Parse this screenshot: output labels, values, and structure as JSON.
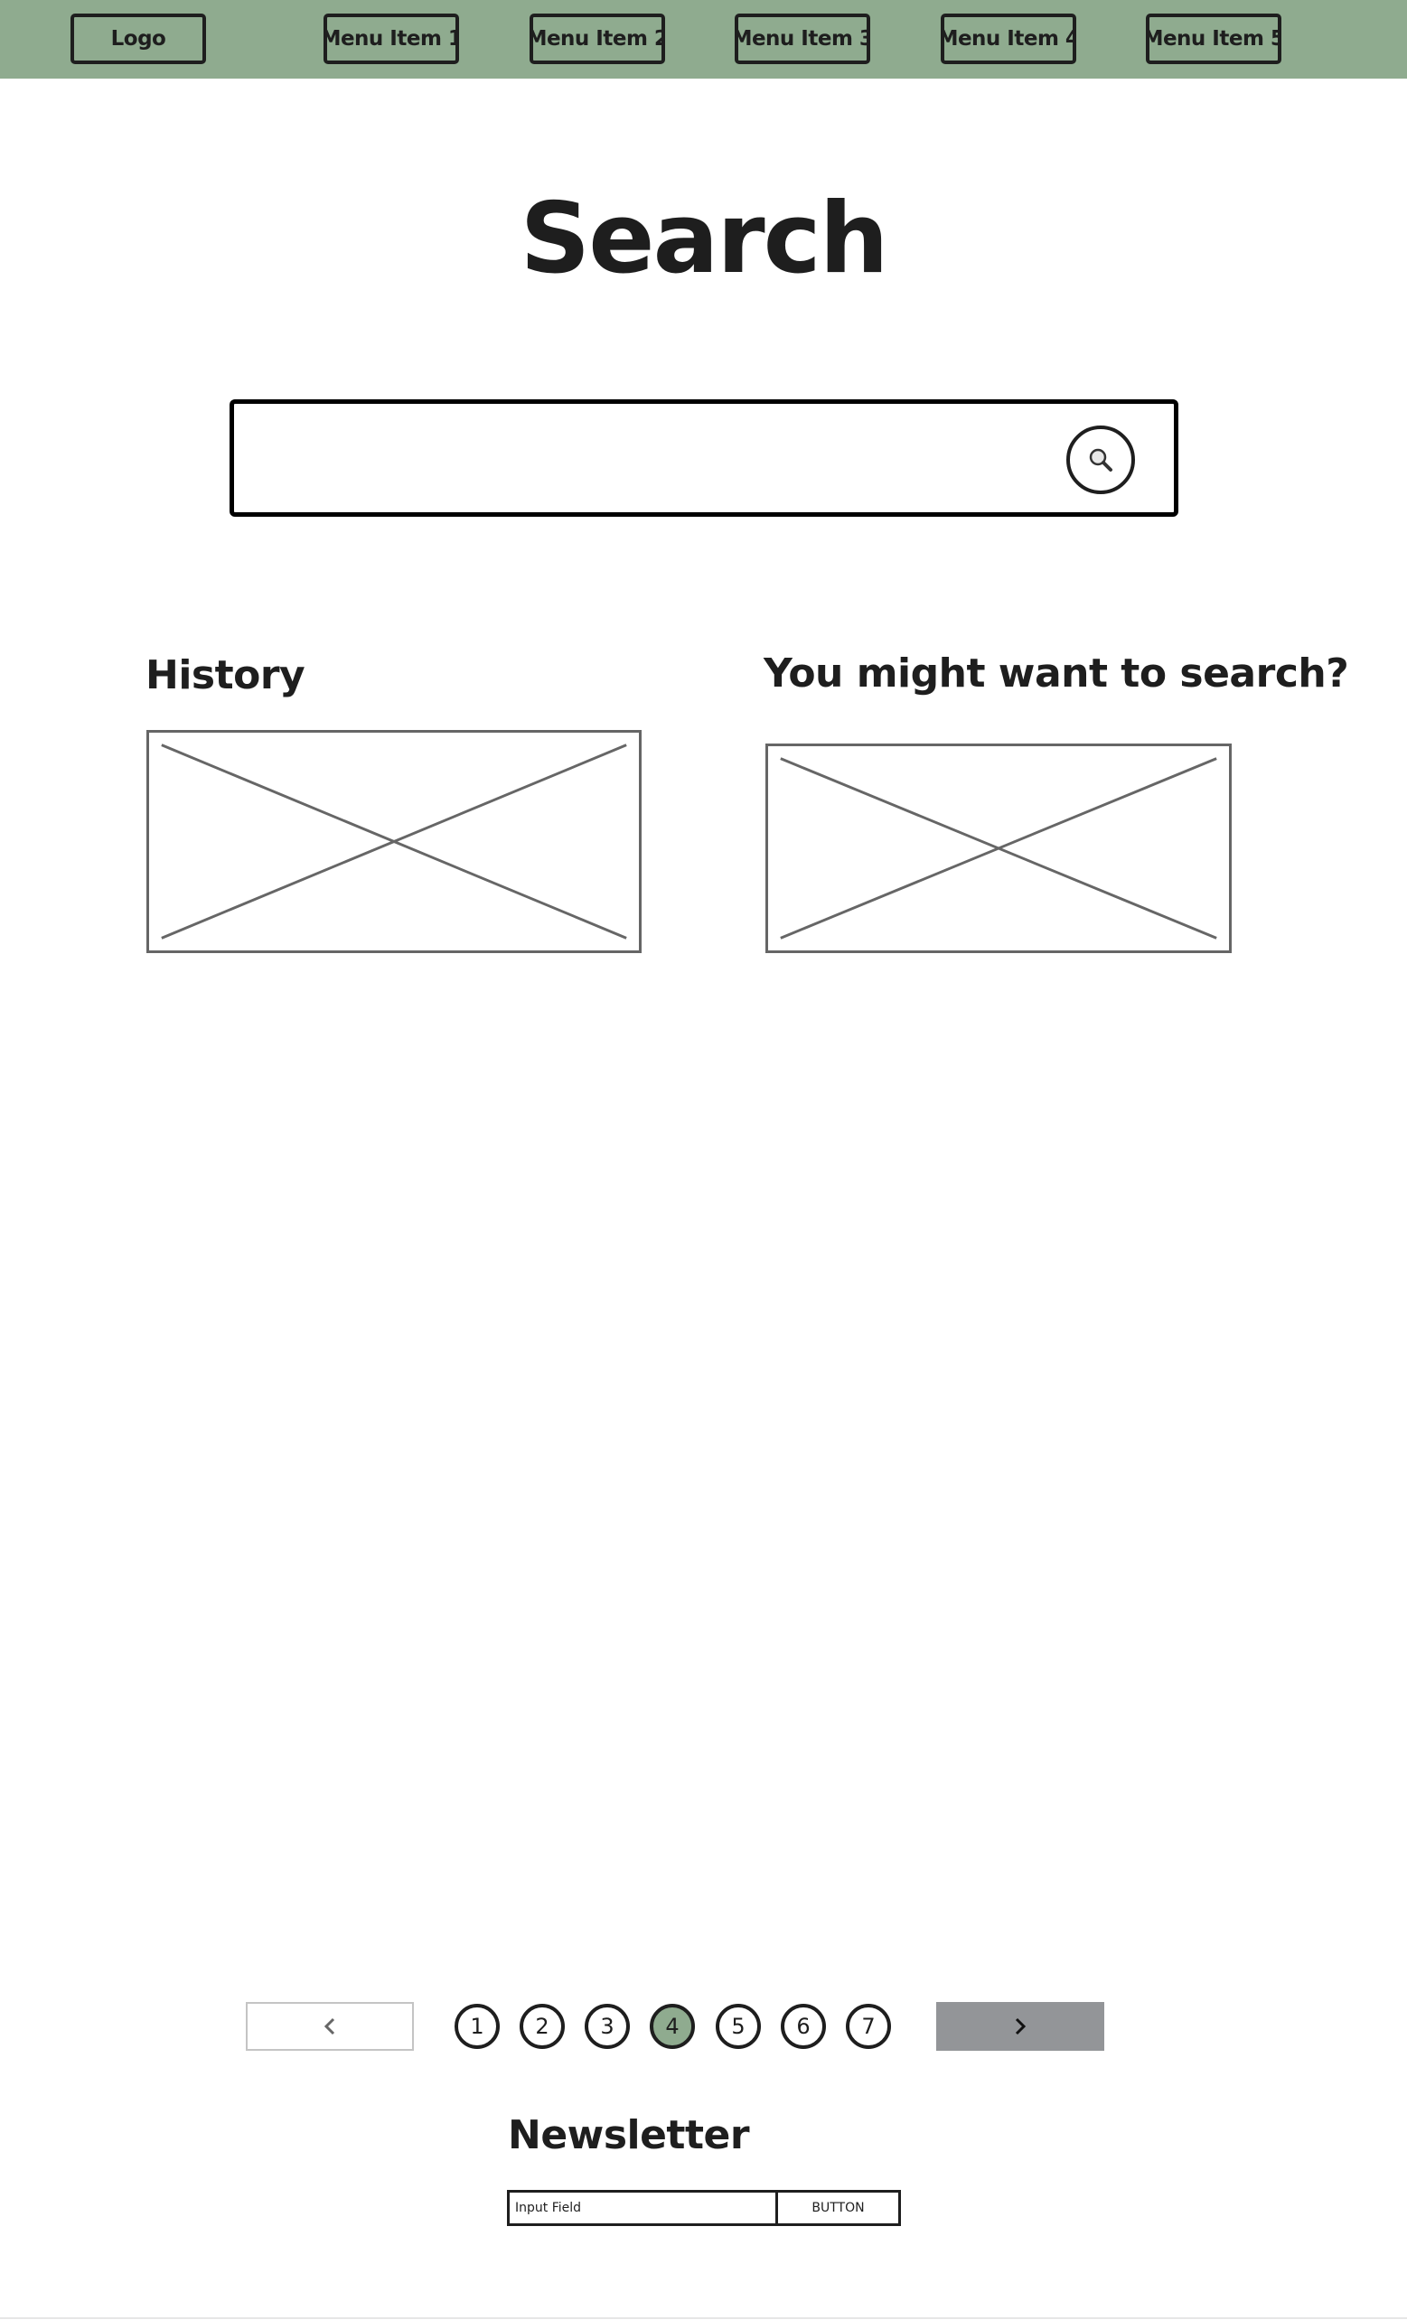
{
  "navbar": {
    "background": "#8fab8f",
    "logo_label": "Logo",
    "menu_items": [
      {
        "label": "Menu Item 1"
      },
      {
        "label": "Menu Item 2"
      },
      {
        "label": "Menu Item 3"
      },
      {
        "label": "Menu Item 4"
      },
      {
        "label": "Menu Item 5"
      }
    ]
  },
  "main": {
    "title": "Search",
    "search": {
      "value": "",
      "placeholder": "",
      "button_icon": "magnifier-icon"
    },
    "history": {
      "heading": "History",
      "image": "image-placeholder"
    },
    "suggestions": {
      "heading": "You might want to search?",
      "image": "image-placeholder"
    }
  },
  "pagination": {
    "prev_icon": "chevron-left-icon",
    "next_icon": "chevron-right-icon",
    "pages": [
      "1",
      "2",
      "3",
      "4",
      "5",
      "6",
      "7"
    ],
    "current_page": "4",
    "active_color": "#8fab8f",
    "next_button_color": "#939598"
  },
  "newsletter": {
    "heading": "Newsletter",
    "input_placeholder": "Input Field",
    "button_label": "BUTTON"
  }
}
